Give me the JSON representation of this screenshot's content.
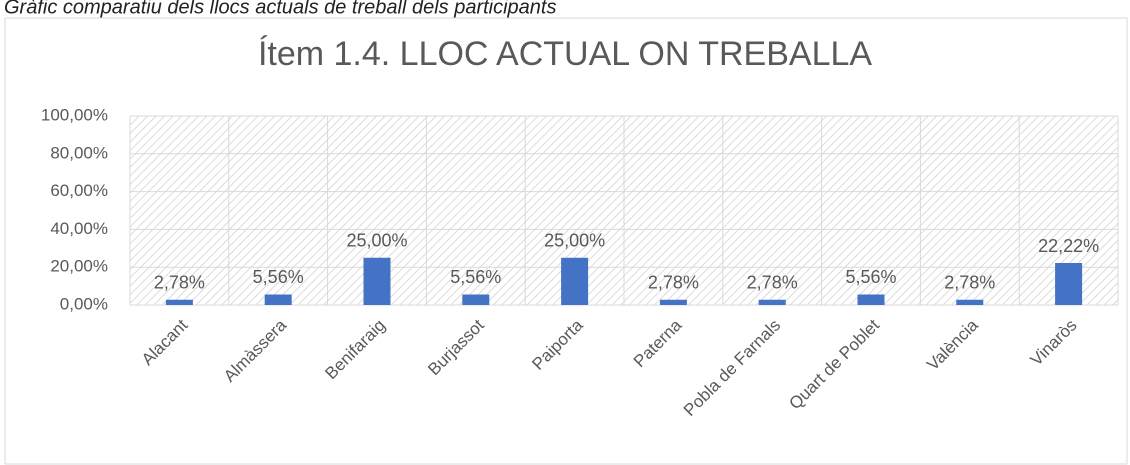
{
  "caption": "Gràfic comparatiu dels llocs actuals de treball dels participants",
  "chart_data": {
    "type": "bar",
    "title": "Ítem 1.4. LLOC ACTUAL ON TREBALLA",
    "categories": [
      "Alacant",
      "Almàssera",
      "Benifaraig",
      "Burjassot",
      "Paiporta",
      "Paterna",
      "Pobla de Farnals",
      "Quart de Poblet",
      "València",
      "Vinaròs"
    ],
    "values": [
      2.78,
      5.56,
      25,
      5.56,
      25,
      2.78,
      2.78,
      5.56,
      2.78,
      22.22
    ],
    "value_labels": [
      "2,78%",
      "5,56%",
      "25,00%",
      "5,56%",
      "25,00%",
      "2,78%",
      "2,78%",
      "5,56%",
      "2,78%",
      "22,22%"
    ],
    "color": "#4472c4",
    "ylim": [
      0,
      100
    ],
    "yticks": [
      {
        "value": 0,
        "label": "0,00%"
      },
      {
        "value": 20,
        "label": "20,00%"
      },
      {
        "value": 40,
        "label": "40,00%"
      },
      {
        "value": 60,
        "label": "60,00%"
      },
      {
        "value": 80,
        "label": "80,00%"
      },
      {
        "value": 100,
        "label": "100,00%"
      }
    ],
    "grid": true
  }
}
